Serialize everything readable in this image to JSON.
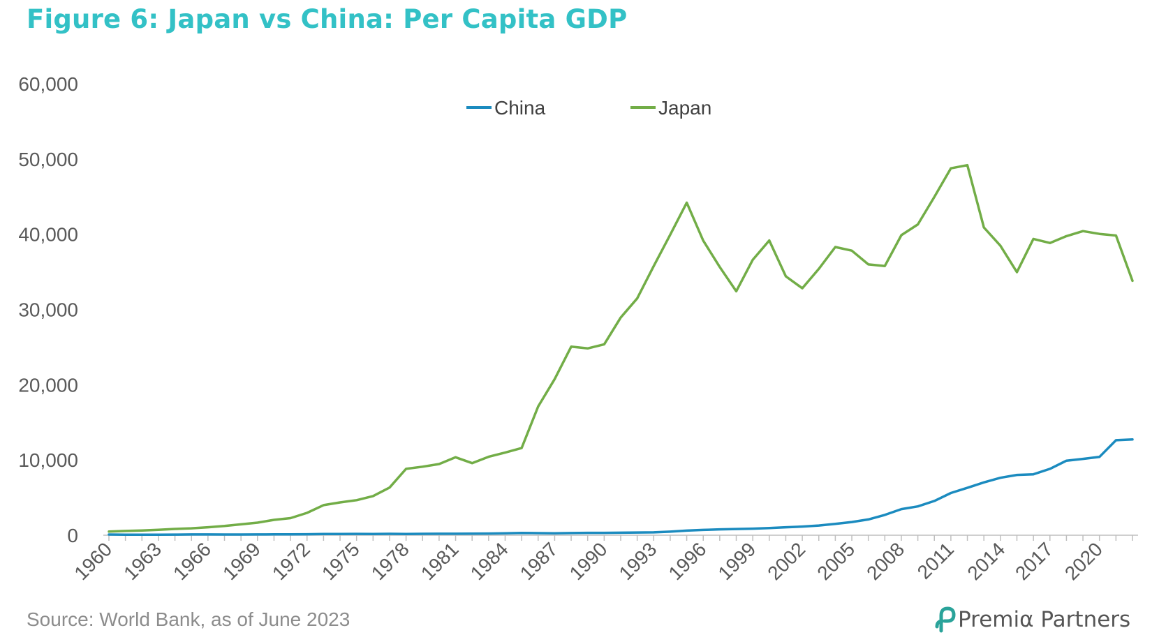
{
  "title": "Figure 6: Japan vs China: Per Capita GDP",
  "source": "Source: World Bank, as of June 2023",
  "brand": {
    "name": "Premiα Partners",
    "icon": "premia-logo-icon",
    "color": "#2aa39a"
  },
  "colors": {
    "title": "#33c1c6",
    "China": "#1b8bbf",
    "Japan": "#72ad47",
    "axis": "#bfbfbf",
    "text": "#595959"
  },
  "chart_data": {
    "type": "line",
    "title": "Figure 6: Japan vs China: Per Capita GDP",
    "xlabel": "",
    "ylabel": "",
    "ylim": [
      0,
      60000
    ],
    "y_ticks": [
      "0",
      "10,000",
      "20,000",
      "30,000",
      "40,000",
      "50,000",
      "60,000"
    ],
    "grid": false,
    "legend": "top-center",
    "x": [
      1960,
      1961,
      1962,
      1963,
      1964,
      1965,
      1966,
      1967,
      1968,
      1969,
      1970,
      1971,
      1972,
      1973,
      1974,
      1975,
      1976,
      1977,
      1978,
      1979,
      1980,
      1981,
      1982,
      1983,
      1984,
      1985,
      1986,
      1987,
      1988,
      1989,
      1990,
      1991,
      1992,
      1993,
      1994,
      1995,
      1996,
      1997,
      1998,
      1999,
      2000,
      2001,
      2002,
      2003,
      2004,
      2005,
      2006,
      2007,
      2008,
      2009,
      2010,
      2011,
      2012,
      2013,
      2014,
      2015,
      2016,
      2017,
      2018,
      2019,
      2020,
      2021,
      2022
    ],
    "x_tick_labels": [
      "1960",
      "1963",
      "1966",
      "1969",
      "1972",
      "1975",
      "1978",
      "1981",
      "1984",
      "1987",
      "1990",
      "1993",
      "1996",
      "1999",
      "2002",
      "2005",
      "2008",
      "2011",
      "2014",
      "2017",
      "2020"
    ],
    "x_tick_positions": [
      1960,
      1963,
      1966,
      1969,
      1972,
      1975,
      1978,
      1981,
      1984,
      1987,
      1990,
      1993,
      1996,
      1999,
      2002,
      2005,
      2008,
      2011,
      2014.1,
      2017,
      2020
    ],
    "series": [
      {
        "name": "China",
        "values": [
          90,
          76,
          70,
          74,
          85,
          98,
          104,
          97,
          91,
          100,
          113,
          119,
          132,
          157,
          160,
          178,
          165,
          185,
          156,
          183,
          195,
          197,
          203,
          225,
          250,
          294,
          281,
          252,
          284,
          311,
          318,
          333,
          366,
          377,
          473,
          610,
          709,
          782,
          829,
          873,
          959,
          1053,
          1149,
          1289,
          1509,
          1753,
          2099,
          2694,
          3468,
          3832,
          4550,
          5614,
          6301,
          7020,
          7636,
          8016,
          8094,
          8817,
          9905,
          10144,
          10409,
          12618,
          12720
        ]
      },
      {
        "name": "Japan",
        "values": [
          479,
          564,
          633,
          718,
          836,
          919,
          1058,
          1228,
          1450,
          1669,
          2037,
          2272,
          2967,
          3997,
          4354,
          4659,
          5198,
          6335,
          8821,
          9105,
          9463,
          10361,
          9578,
          10425,
          10984,
          11585,
          17112,
          20745,
          25059,
          24823,
          25371,
          28925,
          31465,
          35766,
          39934,
          44198,
          39150,
          35640,
          32423,
          36610,
          39173,
          34406,
          32821,
          35387,
          38299,
          37813,
          35991,
          35779,
          39876,
          41309,
          44968,
          48760,
          49175,
          40898,
          38475,
          34961,
          39375,
          38834,
          39751,
          40416,
          40040,
          39827,
          33815
        ]
      }
    ]
  }
}
